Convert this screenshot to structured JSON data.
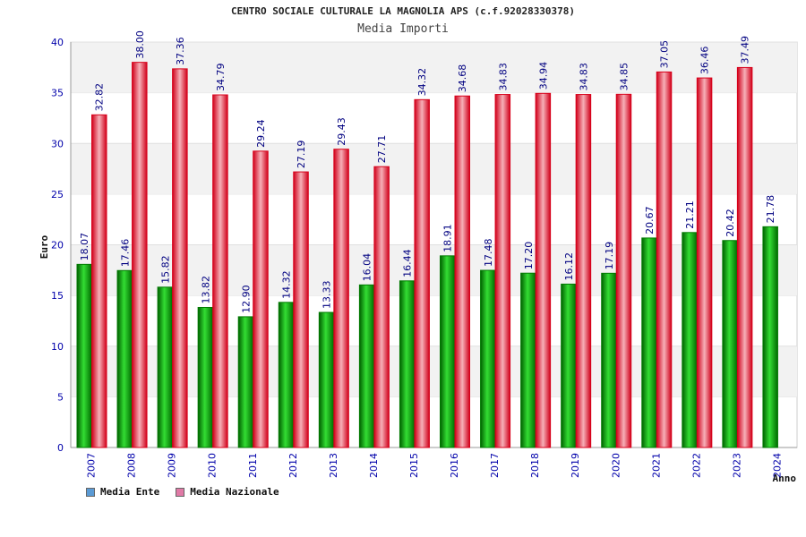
{
  "chart_data": {
    "type": "bar",
    "title": "CENTRO SOCIALE CULTURALE LA MAGNOLIA APS (c.f.92028330378)",
    "subtitle": "Media Importi",
    "xlabel": "Anno",
    "ylabel": "Euro",
    "ylim": [
      0,
      40
    ],
    "yticks": [
      "0",
      "5",
      "10",
      "15",
      "20",
      "25",
      "30",
      "35",
      "40"
    ],
    "categories": [
      "2007",
      "2008",
      "2009",
      "2010",
      "2011",
      "2012",
      "2013",
      "2014",
      "2015",
      "2016",
      "2017",
      "2018",
      "2019",
      "2020",
      "2021",
      "2022",
      "2023",
      "2024"
    ],
    "series": [
      {
        "name": "Media Ente",
        "values": [
          18.07,
          17.46,
          15.82,
          13.82,
          12.9,
          14.32,
          13.33,
          16.04,
          16.44,
          18.91,
          17.48,
          17.2,
          16.12,
          17.19,
          20.67,
          21.21,
          20.42,
          21.78
        ],
        "labels": [
          "18.07",
          "17.46",
          "15.82",
          "13.82",
          "12.90",
          "14.32",
          "13.33",
          "16.04",
          "16.44",
          "18.91",
          "17.48",
          "17.20",
          "16.12",
          "17.19",
          "20.67",
          "21.21",
          "20.42",
          "21.78"
        ]
      },
      {
        "name": "Media Nazionale",
        "values": [
          32.82,
          38.0,
          37.36,
          34.79,
          29.24,
          27.19,
          29.43,
          27.71,
          34.32,
          34.68,
          34.83,
          34.94,
          34.83,
          34.85,
          37.05,
          36.46,
          37.49,
          null
        ],
        "labels": [
          "32.82",
          "38.00",
          "37.36",
          "34.79",
          "29.24",
          "27.19",
          "29.43",
          "27.71",
          "34.32",
          "34.68",
          "34.83",
          "34.94",
          "34.83",
          "34.85",
          "37.05",
          "36.46",
          "37.49",
          ""
        ]
      }
    ],
    "legend": [
      {
        "label": "Media Ente",
        "color": "#5b9bd5"
      },
      {
        "label": "Media Nazionale",
        "color": "#e07aa6"
      }
    ],
    "grid": true,
    "legend_position": "bottom-left"
  },
  "colors": {
    "ente_dark": "#007a00",
    "ente_light": "#44dd44",
    "naz_dark": "#d8001a",
    "naz_light": "#f4a8b0",
    "axis_text": "#0000aa",
    "value_text": "#000080"
  }
}
